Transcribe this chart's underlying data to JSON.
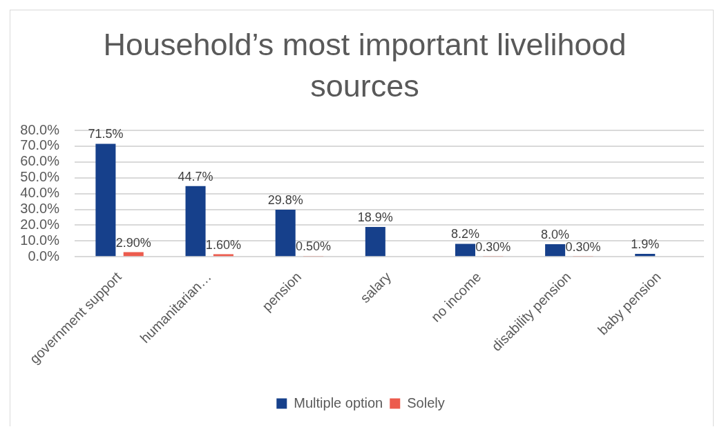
{
  "chart_data": {
    "type": "bar",
    "title": "Household’s most important livelihood sources",
    "categories": [
      "government support",
      "humanitarian…",
      "pension",
      "salary",
      "no income",
      "disability pension",
      "baby pension"
    ],
    "series": [
      {
        "name": "Multiple option",
        "color": "#16408b",
        "values": [
          71.5,
          44.7,
          29.8,
          18.9,
          8.2,
          8.0,
          1.9
        ],
        "value_labels": [
          "71.5%",
          "44.7%",
          "29.8%",
          "18.9%",
          "8.2%",
          "8.0%",
          "1.9%"
        ]
      },
      {
        "name": "Solely",
        "color": "#ec5b4d",
        "values": [
          2.9,
          1.6,
          0.5,
          null,
          0.3,
          0.3,
          null
        ],
        "value_labels": [
          "2.90%",
          "1.60%",
          "0.50%",
          null,
          "0.30%",
          "0.30%",
          null
        ]
      }
    ],
    "ylim": [
      0,
      80
    ],
    "yticks": [
      {
        "value": 0,
        "label": "0.0%"
      },
      {
        "value": 10,
        "label": "10.0%"
      },
      {
        "value": 20,
        "label": "20.0%"
      },
      {
        "value": 30,
        "label": "30.0%"
      },
      {
        "value": 40,
        "label": "40.0%"
      },
      {
        "value": 50,
        "label": "50.0%"
      },
      {
        "value": 60,
        "label": "60.0%"
      },
      {
        "value": 70,
        "label": "70.0%"
      },
      {
        "value": 80,
        "label": "80.0%"
      }
    ],
    "grid": "y",
    "legend": "bottom"
  }
}
